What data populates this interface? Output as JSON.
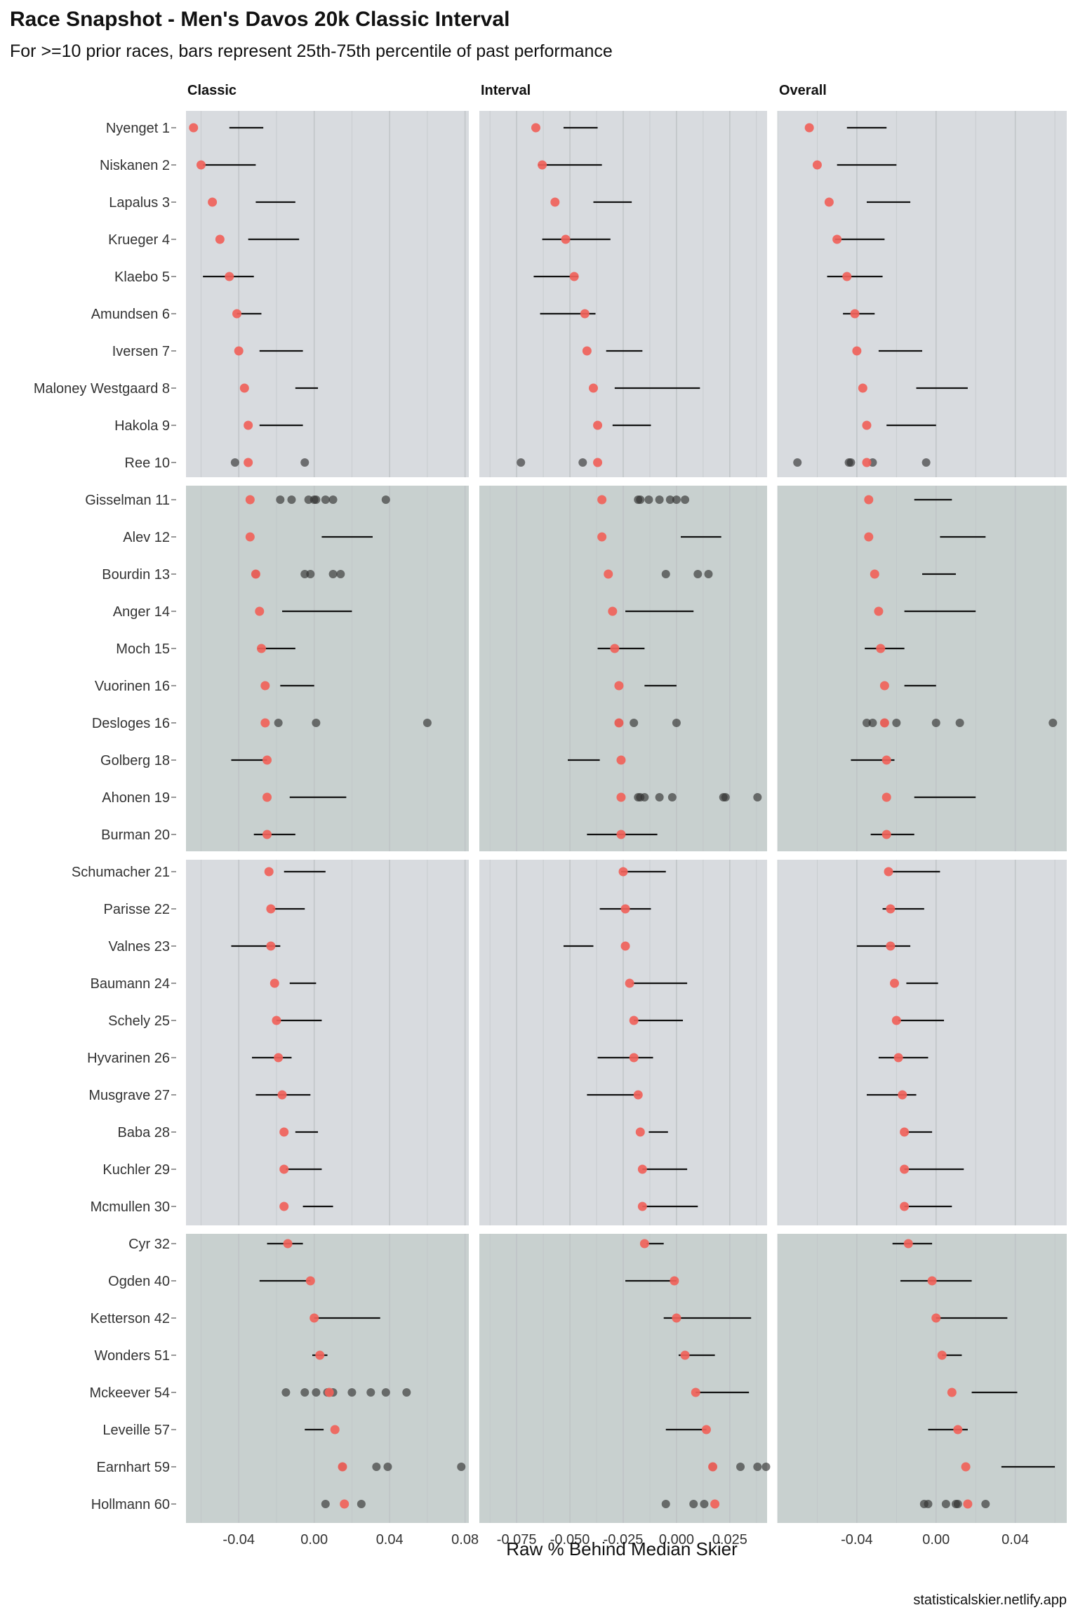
{
  "colors": {
    "panel_group_a": "#d8dbdf",
    "panel_group_b": "#c8d0cf",
    "grid": "#bfc3c6",
    "median_point": "#f0625a",
    "prior_point": "#333333",
    "bar": "#111111"
  },
  "chart_data": {
    "type": "scatter",
    "title": "Race Snapshot -  Men's Davos 20k Classic Interval",
    "subtitle": "For >=10 prior races, bars represent 25th-75th percentile of past performance",
    "xlabel": "Raw % Behind Median Skier",
    "caption": "statisticalskier.netlify.app",
    "panels": [
      {
        "name": "Classic",
        "xlim": [
          -0.068,
          0.082
        ],
        "ticks": [
          -0.04,
          0.0,
          0.04,
          0.08
        ],
        "tick_labels": [
          "-0.04",
          "0.00",
          "0.04",
          "0.08"
        ]
      },
      {
        "name": "Interval",
        "xlim": [
          -0.0925,
          0.0425
        ],
        "ticks": [
          -0.075,
          -0.05,
          -0.025,
          0.0,
          0.025
        ],
        "tick_labels": [
          "-0.075",
          "-0.050",
          "-0.025",
          "0.000",
          "0.025"
        ]
      },
      {
        "name": "Overall",
        "xlim": [
          -0.08,
          0.066
        ],
        "ticks": [
          -0.04,
          0.0,
          0.04
        ],
        "tick_labels": [
          "-0.04",
          "0.00",
          "0.04"
        ]
      }
    ],
    "groups": [
      {
        "athletes": [
          "Nyenget 1",
          "Niskanen 2",
          "Lapalus 3",
          "Krueger 4",
          "Klaebo 5",
          "Amundsen 6",
          "Iversen 7",
          "Maloney Westgaard 8",
          "Hakola 9",
          "Ree 10"
        ]
      },
      {
        "athletes": [
          "Gisselman 11",
          "Alev 12",
          "Bourdin 13",
          "Anger 14",
          "Moch 15",
          "Vuorinen 16",
          "Desloges 16",
          "Golberg 18",
          "Ahonen 19",
          "Burman 20"
        ]
      },
      {
        "athletes": [
          "Schumacher 21",
          "Parisse 22",
          "Valnes 23",
          "Baumann 24",
          "Schely 25",
          "Hyvarinen 26",
          "Musgrave 27",
          "Baba 28",
          "Kuchler 29",
          "Mcmullen 30"
        ]
      },
      {
        "athletes": [
          "Cyr 32",
          "Ogden 40",
          "Ketterson 42",
          "Wonders 51",
          "Mckeever 54",
          "Leveille 57",
          "Earnhart 59",
          "Hollmann 60"
        ]
      }
    ],
    "athletes": [
      {
        "name": "Nyenget 1",
        "median": [
          -0.064,
          -0.066,
          -0.064
        ],
        "bar": [
          [
            -0.045,
            -0.027
          ],
          [
            -0.053,
            -0.037
          ],
          [
            -0.045,
            -0.025
          ]
        ],
        "priors": [
          [],
          [],
          []
        ]
      },
      {
        "name": "Niskanen 2",
        "median": [
          -0.06,
          -0.063,
          -0.06
        ],
        "bar": [
          [
            -0.059,
            -0.031
          ],
          [
            -0.065,
            -0.035
          ],
          [
            -0.05,
            -0.02
          ]
        ],
        "priors": [
          [],
          [],
          []
        ]
      },
      {
        "name": "Lapalus 3",
        "median": [
          -0.054,
          -0.057,
          -0.054
        ],
        "bar": [
          [
            -0.031,
            -0.01
          ],
          [
            -0.039,
            -0.021
          ],
          [
            -0.035,
            -0.013
          ]
        ],
        "priors": [
          [],
          [],
          []
        ]
      },
      {
        "name": "Krueger 4",
        "median": [
          -0.05,
          -0.052,
          -0.05
        ],
        "bar": [
          [
            -0.035,
            -0.008
          ],
          [
            -0.063,
            -0.031
          ],
          [
            -0.051,
            -0.026
          ]
        ],
        "priors": [
          [],
          [],
          []
        ]
      },
      {
        "name": "Klaebo 5",
        "median": [
          -0.045,
          -0.048,
          -0.045
        ],
        "bar": [
          [
            -0.059,
            -0.032
          ],
          [
            -0.067,
            -0.046
          ],
          [
            -0.055,
            -0.027
          ]
        ],
        "priors": [
          [],
          [],
          []
        ]
      },
      {
        "name": "Amundsen 6",
        "median": [
          -0.041,
          -0.043,
          -0.041
        ],
        "bar": [
          [
            -0.041,
            -0.028
          ],
          [
            -0.064,
            -0.038
          ],
          [
            -0.047,
            -0.031
          ]
        ],
        "priors": [
          [],
          [],
          []
        ]
      },
      {
        "name": "Iversen 7",
        "median": [
          -0.04,
          -0.042,
          -0.04
        ],
        "bar": [
          [
            -0.029,
            -0.006
          ],
          [
            -0.033,
            -0.016
          ],
          [
            -0.029,
            -0.007
          ]
        ],
        "priors": [
          [],
          [],
          []
        ]
      },
      {
        "name": "Maloney Westgaard 8",
        "median": [
          -0.037,
          -0.039,
          -0.037
        ],
        "bar": [
          [
            -0.01,
            0.002
          ],
          [
            -0.029,
            0.011
          ],
          [
            -0.01,
            0.016
          ]
        ],
        "priors": [
          [],
          [],
          []
        ]
      },
      {
        "name": "Hakola 9",
        "median": [
          -0.035,
          -0.037,
          -0.035
        ],
        "bar": [
          [
            -0.029,
            -0.006
          ],
          [
            -0.03,
            -0.012
          ],
          [
            -0.025,
            0.0
          ]
        ],
        "priors": [
          [],
          [],
          []
        ]
      },
      {
        "name": "Ree 10",
        "median": [
          -0.035,
          -0.037,
          -0.035
        ],
        "bar": [
          null,
          null,
          null
        ],
        "priors": [
          [
            -0.042,
            -0.005
          ],
          [
            -0.073,
            -0.044
          ],
          [
            -0.07,
            -0.044,
            -0.043,
            -0.032,
            -0.005
          ]
        ]
      },
      {
        "name": "Gisselman 11",
        "median": [
          -0.034,
          -0.035,
          -0.034
        ],
        "bar": [
          null,
          null,
          [
            -0.011,
            0.008
          ]
        ],
        "priors": [
          [
            -0.018,
            -0.012,
            -0.003,
            0.0,
            0.001,
            0.006,
            0.01,
            0.038
          ],
          [
            -0.018,
            -0.017,
            -0.013,
            -0.008,
            -0.003,
            0.0,
            0.004
          ],
          []
        ]
      },
      {
        "name": "Alev 12",
        "median": [
          -0.034,
          -0.035,
          -0.034
        ],
        "bar": [
          [
            0.004,
            0.031
          ],
          [
            0.002,
            0.021
          ],
          [
            0.002,
            0.025
          ]
        ],
        "priors": [
          [],
          [],
          []
        ]
      },
      {
        "name": "Bourdin 13",
        "median": [
          -0.031,
          -0.032,
          -0.031
        ],
        "bar": [
          null,
          null,
          [
            -0.007,
            0.01
          ]
        ],
        "priors": [
          [
            -0.031,
            -0.005,
            -0.002,
            0.01,
            0.014
          ],
          [
            -0.005,
            0.01,
            0.015
          ],
          []
        ]
      },
      {
        "name": "Anger 14",
        "median": [
          -0.029,
          -0.03,
          -0.029
        ],
        "bar": [
          [
            -0.017,
            0.02
          ],
          [
            -0.024,
            0.008
          ],
          [
            -0.016,
            0.02
          ]
        ],
        "priors": [
          [],
          [],
          []
        ]
      },
      {
        "name": "Moch 15",
        "median": [
          -0.028,
          -0.029,
          -0.028
        ],
        "bar": [
          [
            -0.03,
            -0.01
          ],
          [
            -0.037,
            -0.015
          ],
          [
            -0.036,
            -0.016
          ]
        ],
        "priors": [
          [],
          [],
          []
        ]
      },
      {
        "name": "Vuorinen 16",
        "median": [
          -0.026,
          -0.027,
          -0.026
        ],
        "bar": [
          [
            -0.018,
            0.0
          ],
          [
            -0.015,
            0.0
          ],
          [
            -0.016,
            0.0
          ]
        ],
        "priors": [
          [],
          [],
          []
        ]
      },
      {
        "name": "Desloges 16",
        "median": [
          -0.026,
          -0.027,
          -0.026
        ],
        "bar": [
          null,
          null,
          null
        ],
        "priors": [
          [
            -0.019,
            0.001,
            0.06
          ],
          [
            -0.027,
            -0.02,
            0.0
          ],
          [
            -0.035,
            -0.032,
            -0.026,
            -0.02,
            0.0,
            0.012,
            0.059
          ]
        ]
      },
      {
        "name": "Golberg 18",
        "median": [
          -0.025,
          -0.026,
          -0.025
        ],
        "bar": [
          [
            -0.044,
            -0.025
          ],
          [
            -0.051,
            -0.036
          ],
          [
            -0.043,
            -0.021
          ]
        ],
        "priors": [
          [],
          [],
          []
        ]
      },
      {
        "name": "Ahonen 19",
        "median": [
          -0.025,
          -0.026,
          -0.025
        ],
        "bar": [
          [
            -0.013,
            0.017
          ],
          null,
          [
            -0.011,
            0.02
          ]
        ],
        "priors": [
          [],
          [
            -0.018,
            -0.017,
            -0.015,
            -0.008,
            -0.002,
            0.022,
            0.023,
            0.038
          ],
          []
        ]
      },
      {
        "name": "Burman 20",
        "median": [
          -0.025,
          -0.026,
          -0.025
        ],
        "bar": [
          [
            -0.032,
            -0.01
          ],
          [
            -0.042,
            -0.009
          ],
          [
            -0.033,
            -0.011
          ]
        ],
        "priors": [
          [],
          [],
          []
        ]
      },
      {
        "name": "Schumacher 21",
        "median": [
          -0.024,
          -0.025,
          -0.024
        ],
        "bar": [
          [
            -0.016,
            0.006
          ],
          [
            -0.026,
            -0.005
          ],
          [
            -0.023,
            0.002
          ]
        ],
        "priors": [
          [],
          [],
          []
        ]
      },
      {
        "name": "Parisse 22",
        "median": [
          -0.023,
          -0.024,
          -0.023
        ],
        "bar": [
          [
            -0.022,
            -0.005
          ],
          [
            -0.036,
            -0.012
          ],
          [
            -0.027,
            -0.006
          ]
        ],
        "priors": [
          [],
          [],
          []
        ]
      },
      {
        "name": "Valnes 23",
        "median": [
          -0.023,
          -0.024,
          -0.023
        ],
        "bar": [
          [
            -0.044,
            -0.018
          ],
          [
            -0.053,
            -0.039
          ],
          [
            -0.04,
            -0.013
          ]
        ],
        "priors": [
          [],
          [],
          []
        ]
      },
      {
        "name": "Baumann 24",
        "median": [
          -0.021,
          -0.022,
          -0.021
        ],
        "bar": [
          [
            -0.013,
            0.001
          ],
          [
            -0.021,
            0.005
          ],
          [
            -0.015,
            0.001
          ]
        ],
        "priors": [
          [],
          [],
          []
        ]
      },
      {
        "name": "Schely 25",
        "median": [
          -0.02,
          -0.02,
          -0.02
        ],
        "bar": [
          [
            -0.02,
            0.004
          ],
          [
            -0.02,
            0.003
          ],
          [
            -0.019,
            0.004
          ]
        ],
        "priors": [
          [],
          [],
          []
        ]
      },
      {
        "name": "Hyvarinen 26",
        "median": [
          -0.019,
          -0.02,
          -0.019
        ],
        "bar": [
          [
            -0.033,
            -0.012
          ],
          [
            -0.037,
            -0.011
          ],
          [
            -0.029,
            -0.004
          ]
        ],
        "priors": [
          [],
          [],
          []
        ]
      },
      {
        "name": "Musgrave 27",
        "median": [
          -0.017,
          -0.018,
          -0.017
        ],
        "bar": [
          [
            -0.031,
            -0.002
          ],
          [
            -0.042,
            -0.017
          ],
          [
            -0.035,
            -0.01
          ]
        ],
        "priors": [
          [],
          [],
          []
        ]
      },
      {
        "name": "Baba 28",
        "median": [
          -0.016,
          -0.017,
          -0.016
        ],
        "bar": [
          [
            -0.01,
            0.002
          ],
          [
            -0.013,
            -0.004
          ],
          [
            -0.015,
            -0.002
          ]
        ],
        "priors": [
          [],
          [],
          []
        ]
      },
      {
        "name": "Kuchler 29",
        "median": [
          -0.016,
          -0.016,
          -0.016
        ],
        "bar": [
          [
            -0.015,
            0.004
          ],
          [
            -0.016,
            0.005
          ],
          [
            -0.016,
            0.014
          ]
        ],
        "priors": [
          [],
          [],
          []
        ]
      },
      {
        "name": "Mcmullen 30",
        "median": [
          -0.016,
          -0.016,
          -0.016
        ],
        "bar": [
          [
            -0.006,
            0.01
          ],
          [
            -0.016,
            0.01
          ],
          [
            -0.016,
            0.008
          ]
        ],
        "priors": [
          [],
          [],
          []
        ]
      },
      {
        "name": "Cyr 32",
        "median": [
          -0.014,
          -0.015,
          -0.014
        ],
        "bar": [
          [
            -0.025,
            -0.006
          ],
          [
            -0.014,
            -0.006
          ],
          [
            -0.022,
            -0.002
          ]
        ],
        "priors": [
          [],
          [],
          []
        ]
      },
      {
        "name": "Ogden 40",
        "median": [
          -0.002,
          -0.001,
          -0.002
        ],
        "bar": [
          [
            -0.029,
            -0.002
          ],
          [
            -0.024,
            0.0
          ],
          [
            -0.018,
            0.018
          ]
        ],
        "priors": [
          [],
          [],
          []
        ]
      },
      {
        "name": "Ketterson 42",
        "median": [
          0.0,
          0.0,
          0.0
        ],
        "bar": [
          [
            0.0,
            0.035
          ],
          [
            -0.006,
            0.035
          ],
          [
            0.0,
            0.036
          ]
        ],
        "priors": [
          [],
          [],
          []
        ]
      },
      {
        "name": "Wonders 51",
        "median": [
          0.003,
          0.004,
          0.003
        ],
        "bar": [
          [
            -0.001,
            0.007
          ],
          [
            0.001,
            0.018
          ],
          [
            0.003,
            0.013
          ]
        ],
        "priors": [
          [],
          [],
          []
        ]
      },
      {
        "name": "Mckeever 54",
        "median": [
          0.008,
          0.009,
          0.008
        ],
        "bar": [
          null,
          [
            0.009,
            0.034
          ],
          [
            0.018,
            0.041
          ]
        ],
        "priors": [
          [
            -0.015,
            -0.005,
            0.001,
            0.007,
            0.01,
            0.02,
            0.03,
            0.038,
            0.049
          ],
          [],
          []
        ]
      },
      {
        "name": "Leveille 57",
        "median": [
          0.011,
          0.014,
          0.011
        ],
        "bar": [
          [
            -0.005,
            0.005
          ],
          [
            -0.005,
            0.014
          ],
          [
            -0.004,
            0.016
          ]
        ],
        "priors": [
          [],
          [],
          []
        ]
      },
      {
        "name": "Earnhart 59",
        "median": [
          0.015,
          0.017,
          0.015
        ],
        "bar": [
          null,
          null,
          [
            0.033,
            0.06
          ]
        ],
        "priors": [
          [
            0.015,
            0.033,
            0.039,
            0.078
          ],
          [
            0.017,
            0.03,
            0.038,
            0.042
          ],
          []
        ]
      },
      {
        "name": "Hollmann 60",
        "median": [
          0.016,
          0.018,
          0.016
        ],
        "bar": [
          null,
          null,
          null
        ],
        "priors": [
          [
            0.006,
            0.025
          ],
          [
            -0.005,
            0.008,
            0.013
          ],
          [
            -0.006,
            -0.004,
            0.005,
            0.01,
            0.011,
            0.025
          ]
        ]
      }
    ]
  }
}
